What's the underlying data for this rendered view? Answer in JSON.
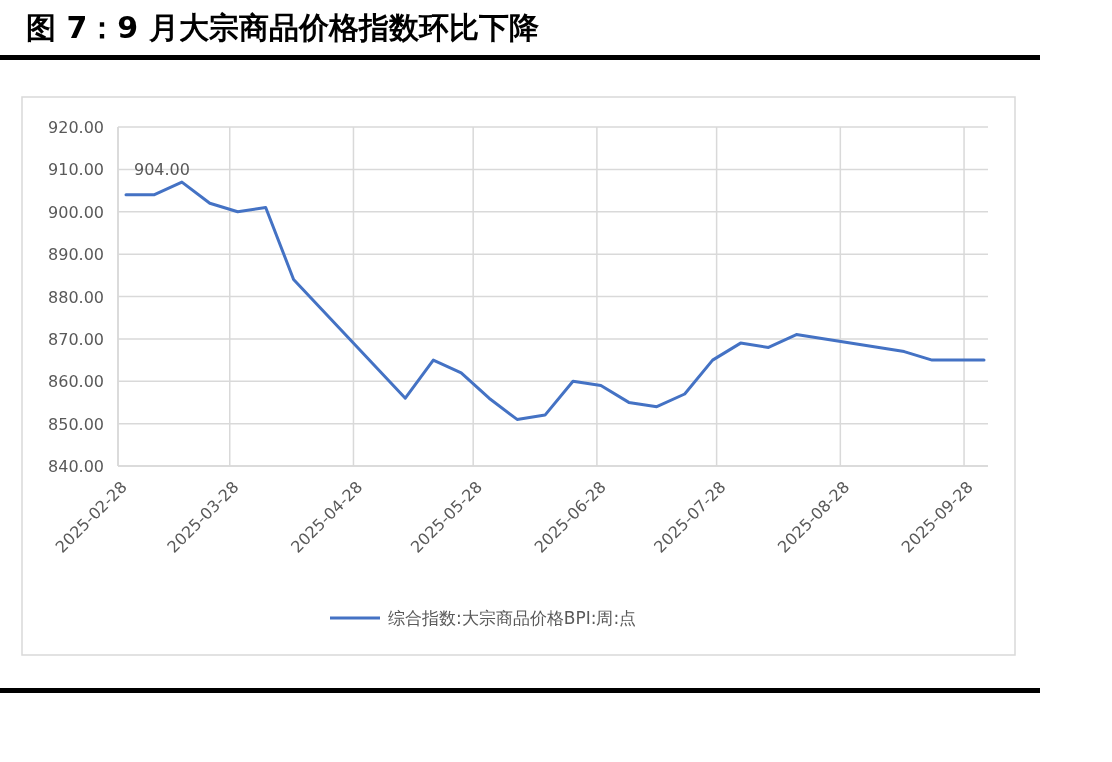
{
  "chart_data": {
    "type": "line",
    "title": "图 7：9 月大宗商品价格指数环比下降",
    "x": [
      "2025-03-02",
      "2025-03-09",
      "2025-03-16",
      "2025-03-23",
      "2025-03-30",
      "2025-04-06",
      "2025-04-13",
      "2025-05-11",
      "2025-05-18",
      "2025-05-25",
      "2025-06-01",
      "2025-06-08",
      "2025-06-15",
      "2025-06-22",
      "2025-06-29",
      "2025-07-06",
      "2025-07-13",
      "2025-07-20",
      "2025-07-27",
      "2025-08-03",
      "2025-08-10",
      "2025-08-17",
      "2025-09-13",
      "2025-09-20",
      "2025-10-03"
    ],
    "series": [
      {
        "name": "综合指数:大宗商品价格BPI:周:点",
        "color": "#4472c4",
        "values": [
          904,
          904,
          907,
          902,
          900,
          901,
          884,
          856,
          865,
          862,
          856,
          851,
          852,
          860,
          859,
          855,
          854,
          857,
          865,
          869,
          868,
          871,
          867,
          865,
          865
        ],
        "value_labels": [
          "904.00",
          null,
          null,
          null,
          null,
          null,
          null,
          null,
          null,
          null,
          null,
          null,
          null,
          null,
          null,
          null,
          null,
          null,
          null,
          null,
          null,
          null,
          null,
          null,
          null
        ]
      }
    ],
    "xlim": [
      "2025-02-28",
      "2025-10-04"
    ],
    "xticks": [
      "2025-02-28",
      "2025-03-28",
      "2025-04-28",
      "2025-05-28",
      "2025-06-28",
      "2025-07-28",
      "2025-08-28",
      "2025-09-28"
    ],
    "ylim": [
      840,
      920
    ],
    "yticks": [
      {
        "value": 840,
        "label": "840.00"
      },
      {
        "value": 850,
        "label": "850.00"
      },
      {
        "value": 860,
        "label": "860.00"
      },
      {
        "value": 870,
        "label": "870.00"
      },
      {
        "value": 880,
        "label": "880.00"
      },
      {
        "value": 890,
        "label": "890.00"
      },
      {
        "value": 900,
        "label": "900.00"
      },
      {
        "value": 910,
        "label": "910.00"
      },
      {
        "value": 920,
        "label": "920.00"
      }
    ],
    "grid": true,
    "legend": "bottom",
    "marker": "none",
    "line_style": "solid"
  }
}
